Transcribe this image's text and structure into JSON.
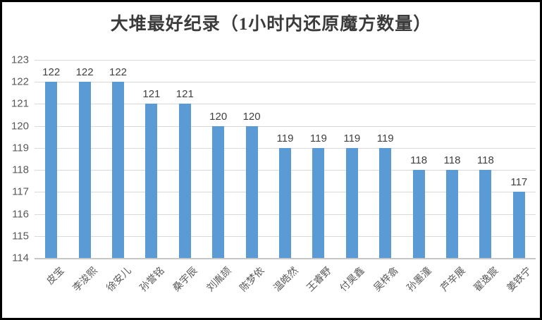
{
  "chart_data": {
    "type": "bar",
    "title": "大堆最好纪录（1小时内还原魔方数量）",
    "categories": [
      "皮宝",
      "李浚熙",
      "徐安儿",
      "孙誉铭",
      "桑宇辰",
      "刘胤颉",
      "陈梦依",
      "温皓然",
      "王睿野",
      "付昊鑫",
      "吴梓翕",
      "孙墨潼",
      "芦辛展",
      "翟逸宸",
      "姜铁宁"
    ],
    "values": [
      122,
      122,
      122,
      121,
      121,
      120,
      120,
      119,
      119,
      119,
      119,
      118,
      118,
      118,
      117
    ],
    "xlabel": "",
    "ylabel": "",
    "ylim": [
      114,
      123
    ],
    "yticks": [
      114,
      115,
      116,
      117,
      118,
      119,
      120,
      121,
      122,
      123
    ],
    "grid": true,
    "legend_position": "none",
    "data_labels_shown": true,
    "colors": {
      "bar": "#5b9bd5",
      "gridline": "#d9d9d9",
      "axis_line": "#c6c6c6",
      "tick_label": "#595959",
      "data_label": "#404040",
      "title": "#3b3b3b",
      "background": "#ffffff",
      "frame_border": "#000000"
    }
  }
}
